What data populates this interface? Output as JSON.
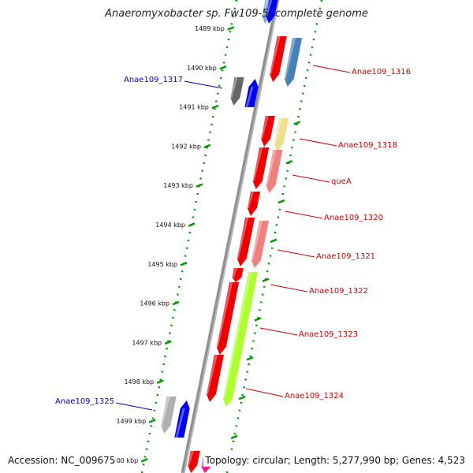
{
  "title": "Anaeromyxobacter sp. Fw109-5, complete genome",
  "footer": {
    "accession": "Accession: NC_009675",
    "summary": "Topology: circular; Length: 5,277,990 bp; Genes: 4,523"
  },
  "tick_labels": [
    "1489 kbp",
    "1490 kbp",
    "1491 kbp",
    "1492 kbp",
    "1493 kbp",
    "1494 kbp",
    "1495 kbp",
    "1496 kbp",
    "1497 kbp",
    "1498 kbp",
    "1499 kbp",
    "1500 kbp"
  ],
  "gene_labels": [
    {
      "text": "Anae109_1316",
      "color": "#cc0000"
    },
    {
      "text": "Anae109_1317",
      "color": "#0000cc"
    },
    {
      "text": "Anae109_1318",
      "color": "#cc0000"
    },
    {
      "text": "queA",
      "color": "#cc0000"
    },
    {
      "text": "Anae109_1320",
      "color": "#cc0000"
    },
    {
      "text": "Anae109_1321",
      "color": "#cc0000"
    },
    {
      "text": "Anae109_1322",
      "color": "#cc0000"
    },
    {
      "text": "Anae109_1323",
      "color": "#cc0000"
    },
    {
      "text": "Anae109_1324",
      "color": "#cc0000"
    },
    {
      "text": "Anae109_1325",
      "color": "#0000cc"
    }
  ],
  "colors": {
    "backbone": "#808080",
    "dotted_track": "#009900",
    "gene_red": "#ee0000",
    "gene_blue": "#0000ee",
    "gene_grey": "#666666",
    "gene_light_grey": "#b0b0b0",
    "gene_steelblue": "#4682b4",
    "gene_khaki": "#eee08a",
    "gene_salmon": "#f08080",
    "gene_lime": "#adff2f",
    "gene_magenta": "#ee1a8a",
    "label_red": "#cc0000",
    "label_blue": "#0000cc"
  }
}
